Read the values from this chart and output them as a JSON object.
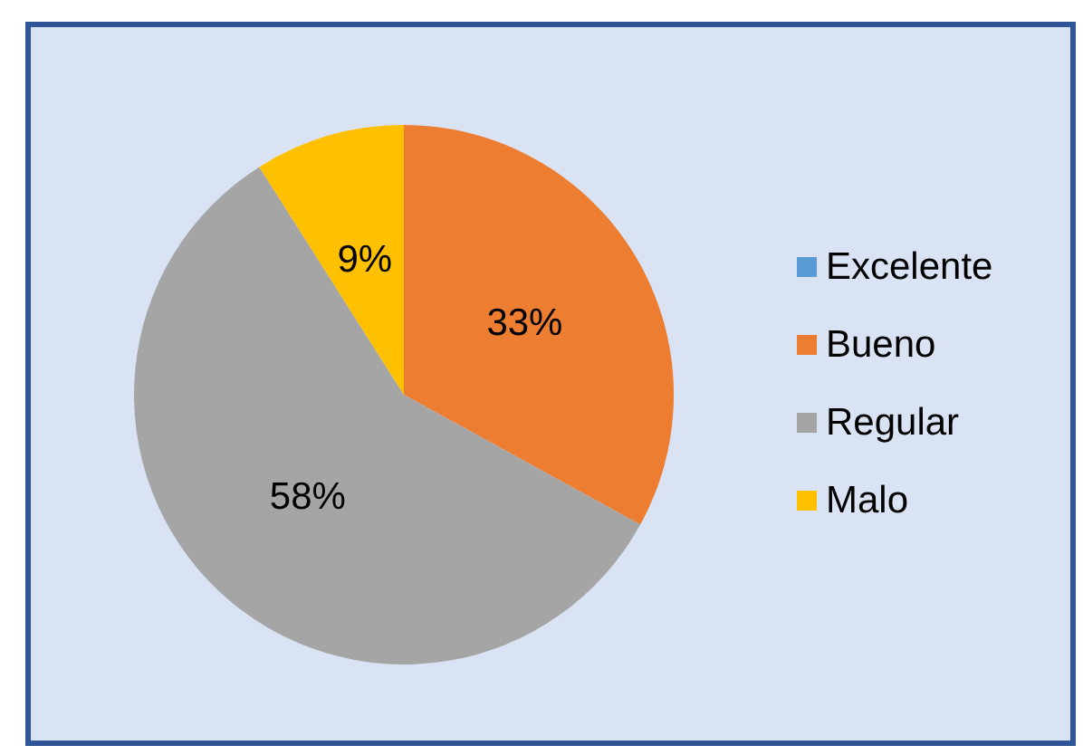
{
  "chart_data": {
    "type": "pie",
    "categories": [
      "Excelente",
      "Bueno",
      "Regular",
      "Malo"
    ],
    "values": [
      0,
      33,
      58,
      9
    ],
    "colors": [
      "#5b9bd5",
      "#ed7d31",
      "#a5a5a5",
      "#ffc000"
    ],
    "value_labels": [
      null,
      "33%",
      "58%",
      "9%"
    ],
    "legend": "right"
  }
}
